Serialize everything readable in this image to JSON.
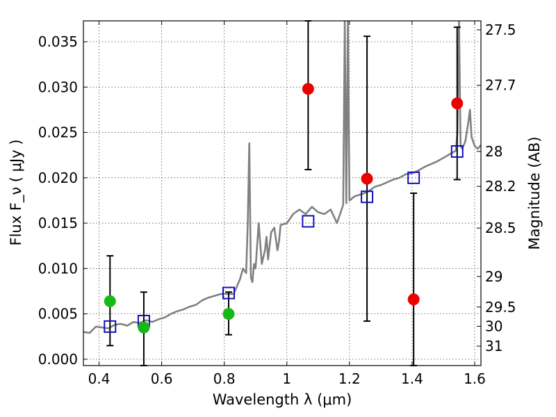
{
  "chart_data": {
    "type": "scatter",
    "xlabel": "Wavelength  λ (μm)",
    "ylabel": "Flux  F_ν  ( μJy )",
    "ylabel_right": "Magnitude (AB)",
    "xlim": [
      0.35,
      1.62
    ],
    "ylim": [
      -0.0007,
      0.0373
    ],
    "x_ticks": [
      0.4,
      0.6,
      0.8,
      1.0,
      1.2,
      1.4,
      1.6
    ],
    "x_tick_labels": [
      "0.4",
      "0.6",
      "0.8",
      "1",
      "1.2",
      "1.4",
      "1.6"
    ],
    "y_ticks": [
      0.0,
      0.005,
      0.01,
      0.015,
      0.02,
      0.025,
      0.03,
      0.035
    ],
    "y_tick_labels": [
      "0.000",
      "0.005",
      "0.010",
      "0.015",
      "0.020",
      "0.025",
      "0.030",
      "0.035"
    ],
    "mag_ticks": [
      27.5,
      27.7,
      28,
      28.2,
      28.5,
      29,
      29.5,
      30,
      31
    ],
    "mag_tick_labels": [
      "27.5",
      "27.7",
      "28",
      "28.2",
      "28.5",
      "29",
      "29.5",
      "30",
      "31"
    ],
    "grid": true,
    "series": [
      {
        "marker": "circle",
        "color": "#18b818",
        "points": [
          {
            "x": 0.435,
            "y": 0.0064,
            "yerr_low": 0.0015,
            "yerr_high": 0.0114
          },
          {
            "x": 0.543,
            "y": 0.0035,
            "yerr_low": -0.0007,
            "yerr_high": 0.0074
          },
          {
            "x": 0.814,
            "y": 0.005,
            "yerr_low": 0.0027,
            "yerr_high": 0.0074
          }
        ]
      },
      {
        "marker": "circle",
        "color": "#ee0000",
        "points": [
          {
            "x": 1.068,
            "y": 0.0298,
            "yerr_low": 0.0209,
            "yerr_high": 0.0373
          },
          {
            "x": 1.256,
            "y": 0.0199,
            "yerr_low": 0.0042,
            "yerr_high": 0.0356
          },
          {
            "x": 1.405,
            "y": 0.0066,
            "yerr_low": -0.0007,
            "yerr_high": 0.0183
          },
          {
            "x": 1.544,
            "y": 0.0282,
            "yerr_low": 0.0198,
            "yerr_high": 0.0366
          }
        ]
      },
      {
        "marker": "square",
        "color": "#1010c0",
        "points": [
          {
            "x": 0.435,
            "y": 0.0036
          },
          {
            "x": 0.543,
            "y": 0.0042
          },
          {
            "x": 0.814,
            "y": 0.0073
          },
          {
            "x": 1.068,
            "y": 0.0152
          },
          {
            "x": 1.256,
            "y": 0.0179
          },
          {
            "x": 1.405,
            "y": 0.02
          },
          {
            "x": 1.544,
            "y": 0.0229
          }
        ]
      },
      {
        "type": "line",
        "color": "#808080",
        "x": [
          0.35,
          0.37,
          0.39,
          0.41,
          0.43,
          0.45,
          0.47,
          0.49,
          0.51,
          0.53,
          0.55,
          0.57,
          0.59,
          0.61,
          0.63,
          0.65,
          0.67,
          0.69,
          0.71,
          0.73,
          0.75,
          0.77,
          0.79,
          0.81,
          0.83,
          0.85,
          0.86,
          0.87,
          0.875,
          0.88,
          0.885,
          0.89,
          0.895,
          0.9,
          0.91,
          0.92,
          0.93,
          0.935,
          0.94,
          0.95,
          0.96,
          0.97,
          0.975,
          0.98,
          1.0,
          1.02,
          1.04,
          1.06,
          1.08,
          1.1,
          1.12,
          1.14,
          1.16,
          1.17,
          1.18,
          1.185,
          1.19,
          1.195,
          1.2,
          1.205,
          1.21,
          1.22,
          1.24,
          1.26,
          1.28,
          1.3,
          1.32,
          1.34,
          1.36,
          1.38,
          1.4,
          1.42,
          1.44,
          1.46,
          1.48,
          1.5,
          1.52,
          1.54,
          1.545,
          1.55,
          1.555,
          1.56,
          1.57,
          1.58,
          1.585,
          1.59,
          1.6,
          1.61,
          1.62
        ],
        "y": [
          0.003,
          0.0029,
          0.0036,
          0.0035,
          0.0034,
          0.0038,
          0.0039,
          0.0037,
          0.0041,
          0.004,
          0.0043,
          0.0041,
          0.0044,
          0.0046,
          0.005,
          0.0053,
          0.0055,
          0.0058,
          0.006,
          0.0065,
          0.0068,
          0.007,
          0.0072,
          0.0072,
          0.0072,
          0.0088,
          0.01,
          0.0095,
          0.015,
          0.0238,
          0.009,
          0.0085,
          0.0105,
          0.01,
          0.015,
          0.0105,
          0.012,
          0.0135,
          0.011,
          0.014,
          0.0145,
          0.012,
          0.013,
          0.0148,
          0.015,
          0.016,
          0.0165,
          0.016,
          0.0168,
          0.0162,
          0.016,
          0.0165,
          0.015,
          0.016,
          0.017,
          0.0373,
          0.0172,
          0.0373,
          0.0175,
          0.0176,
          0.0178,
          0.018,
          0.0182,
          0.0185,
          0.019,
          0.0192,
          0.0195,
          0.0198,
          0.02,
          0.0204,
          0.0205,
          0.0208,
          0.0212,
          0.0215,
          0.0218,
          0.0222,
          0.0226,
          0.023,
          0.025,
          0.0373,
          0.0235,
          0.0232,
          0.024,
          0.0262,
          0.0275,
          0.0245,
          0.0235,
          0.0232,
          0.0236
        ]
      }
    ]
  }
}
